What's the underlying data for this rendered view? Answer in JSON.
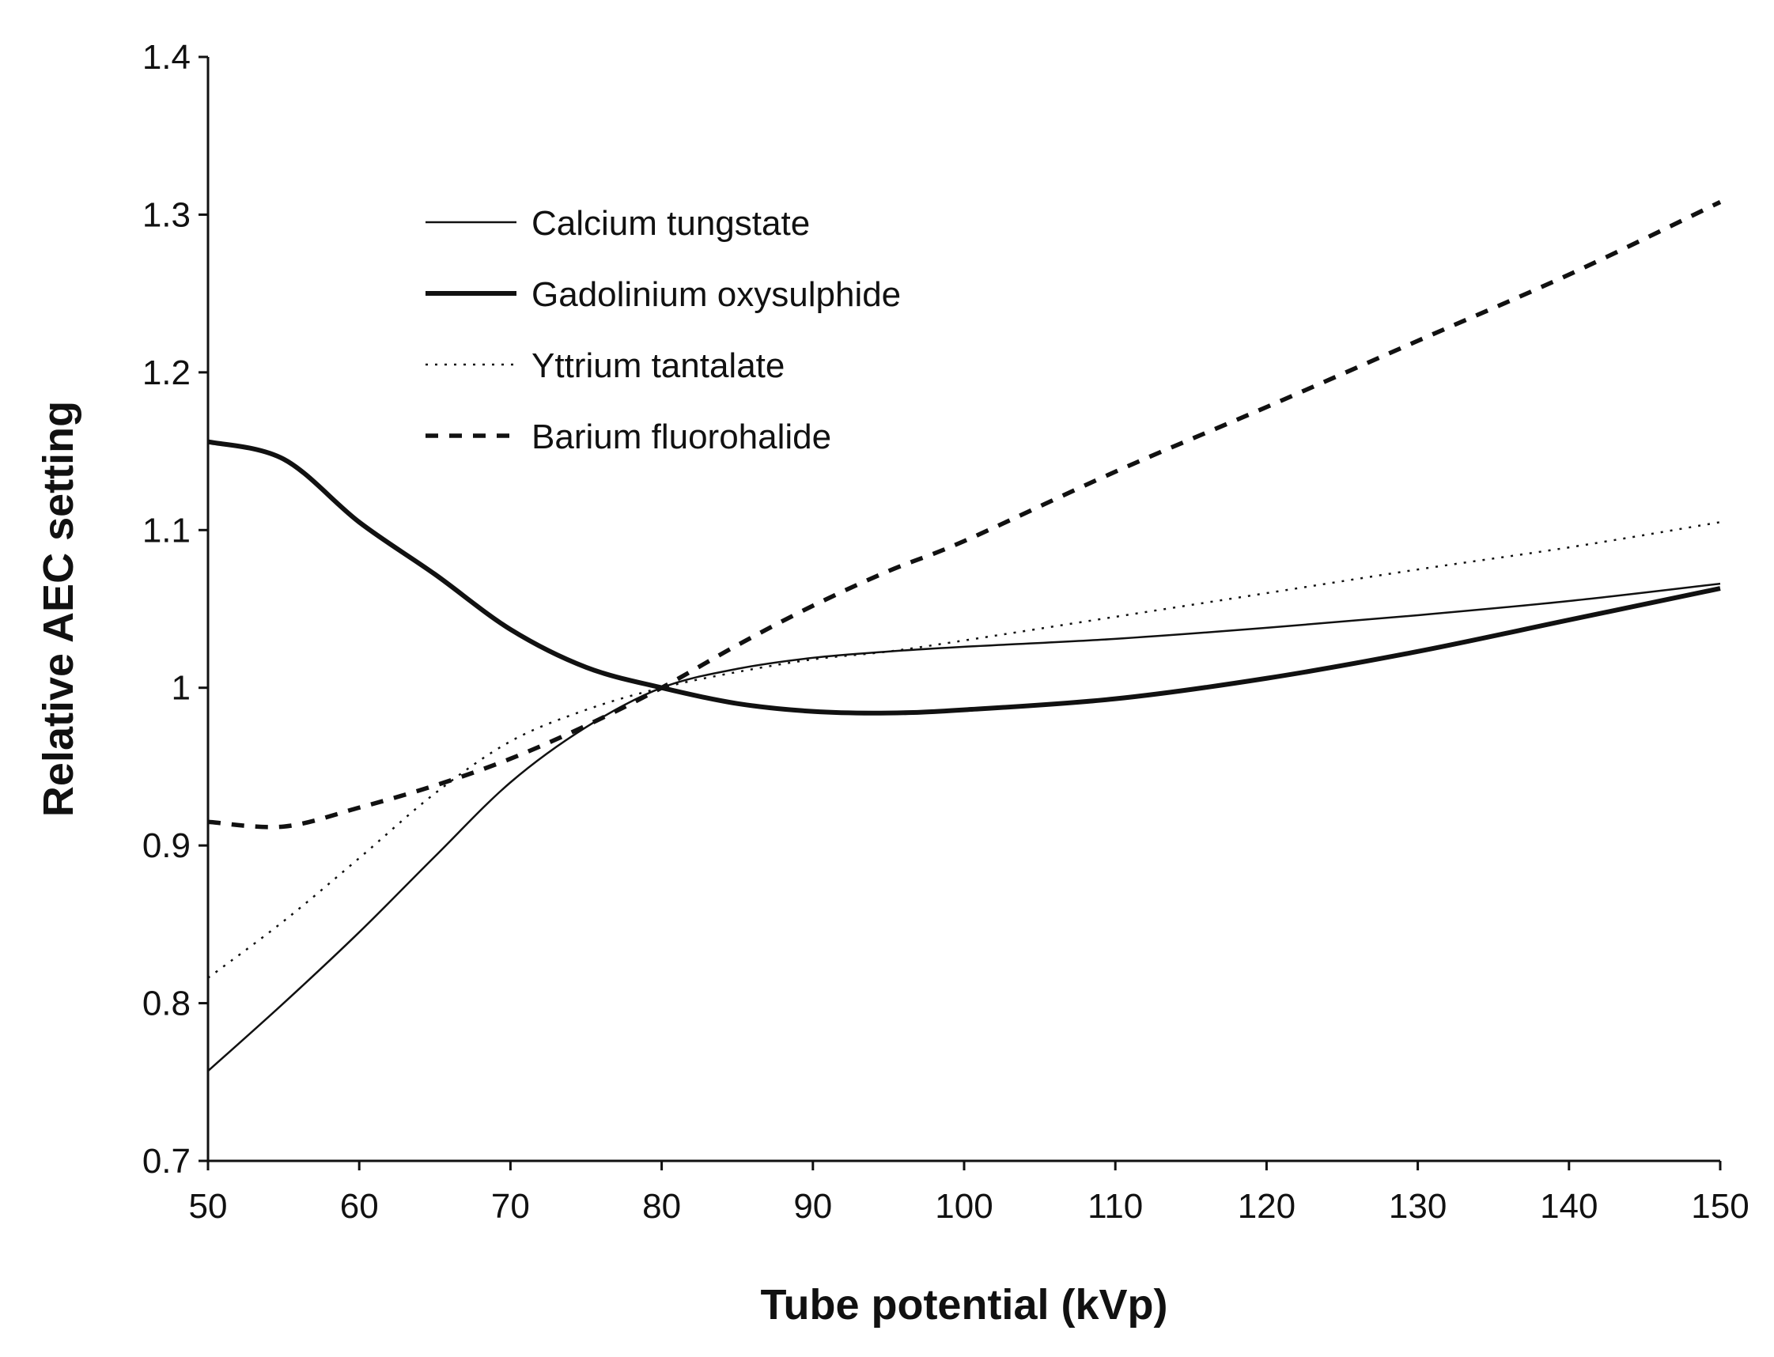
{
  "chart_data": {
    "type": "line",
    "title": "",
    "xlabel": "Tube potential (kVp)",
    "ylabel": "Relative AEC setting",
    "xlim": [
      50,
      150
    ],
    "ylim": [
      0.7,
      1.4
    ],
    "x_ticks": [
      50,
      60,
      70,
      80,
      90,
      100,
      110,
      120,
      130,
      140,
      150
    ],
    "x_tick_labels": [
      "50",
      "60",
      "70",
      "80",
      "90",
      "100",
      "110",
      "120",
      "130",
      "140",
      "150"
    ],
    "y_ticks": [
      0.7,
      0.8,
      0.9,
      1.0,
      1.1,
      1.2,
      1.3,
      1.4
    ],
    "y_tick_labels": [
      "0.7",
      "0.8",
      "0.9",
      "1",
      "1.1",
      "1.2",
      "1.3",
      "1.4"
    ],
    "grid": false,
    "legend_position": "upper-left",
    "x": [
      50,
      55,
      60,
      65,
      70,
      75,
      80,
      85,
      90,
      95,
      100,
      110,
      120,
      130,
      140,
      150
    ],
    "series": [
      {
        "name": "Calcium tungstate",
        "style": "thin-solid",
        "color": "#111111",
        "values": [
          0.757,
          0.8,
          0.845,
          0.893,
          0.94,
          0.975,
          1.0,
          1.012,
          1.019,
          1.023,
          1.026,
          1.031,
          1.038,
          1.046,
          1.055,
          1.066
        ]
      },
      {
        "name": "Gadolinium oxysulphide",
        "style": "thick-solid",
        "color": "#111111",
        "values": [
          1.156,
          1.145,
          1.105,
          1.072,
          1.037,
          1.013,
          1.0,
          0.99,
          0.985,
          0.984,
          0.986,
          0.993,
          1.006,
          1.023,
          1.043,
          1.063
        ]
      },
      {
        "name": "Yttrium tantalate",
        "style": "dotted",
        "color": "#111111",
        "values": [
          0.816,
          0.852,
          0.892,
          0.933,
          0.966,
          0.986,
          1.0,
          1.01,
          1.018,
          1.023,
          1.03,
          1.045,
          1.06,
          1.075,
          1.089,
          1.105
        ]
      },
      {
        "name": "Barium fluorohalide",
        "style": "dashed",
        "color": "#111111",
        "values": [
          0.915,
          0.912,
          0.924,
          0.938,
          0.955,
          0.976,
          1.0,
          1.027,
          1.052,
          1.074,
          1.093,
          1.137,
          1.178,
          1.22,
          1.262,
          1.308
        ]
      }
    ]
  }
}
